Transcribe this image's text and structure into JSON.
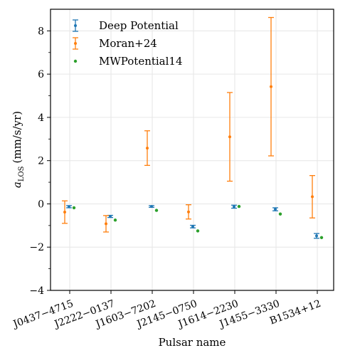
{
  "chart_data": {
    "type": "scatter",
    "xlabel": "Pulsar name",
    "ylabel_main": "a",
    "ylabel_sub": "LOS",
    "ylabel_unit": "(mm/s/yr)",
    "categories": [
      "J0437−4715",
      "J2222−0137",
      "J1603−7202",
      "J2145−0750",
      "J1614−2230",
      "J1455−3330",
      "B1534+12"
    ],
    "ylim": [
      -4,
      9
    ],
    "yticks": [
      -4,
      -2,
      0,
      2,
      4,
      6,
      8
    ],
    "ytick_labels": [
      "−4",
      "−2",
      "0",
      "2",
      "4",
      "6",
      "8"
    ],
    "grid": true,
    "legend_position": "top-left",
    "series": [
      {
        "name": "Deep Potential",
        "color": "#1f77b4",
        "marker": "errorbar",
        "values": [
          -0.13,
          -0.58,
          -0.12,
          -1.05,
          -0.13,
          -0.25,
          -1.48
        ],
        "err_low": [
          0.05,
          0.05,
          0.04,
          0.06,
          0.07,
          0.07,
          0.11
        ],
        "err_high": [
          0.05,
          0.05,
          0.04,
          0.06,
          0.07,
          0.07,
          0.11
        ]
      },
      {
        "name": "Moran+24",
        "color": "#ff7f0e",
        "marker": "errorbar",
        "values": [
          -0.38,
          -0.92,
          2.58,
          -0.37,
          3.1,
          5.42,
          0.33
        ],
        "err_low": [
          0.52,
          0.38,
          0.8,
          0.33,
          2.05,
          3.2,
          0.98
        ],
        "err_high": [
          0.52,
          0.38,
          0.8,
          0.33,
          2.05,
          3.2,
          0.98
        ]
      },
      {
        "name": "MWPotential14",
        "color": "#2ca02c",
        "marker": "point",
        "values": [
          -0.18,
          -0.75,
          -0.3,
          -1.25,
          -0.12,
          -0.47,
          -1.56
        ]
      }
    ]
  }
}
